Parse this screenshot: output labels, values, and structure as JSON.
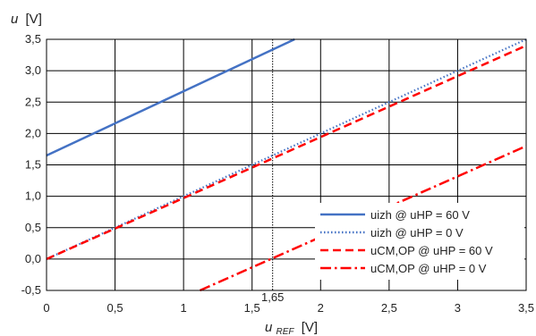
{
  "chart_data": {
    "type": "line",
    "title": "",
    "ylabel_main": "u",
    "ylabel_unit": "[V]",
    "xlabel_main": "u",
    "xlabel_sub": "REF",
    "xlabel_unit": "[V]",
    "xlim": [
      0,
      3.5
    ],
    "ylim": [
      -0.5,
      3.5
    ],
    "x_ticks": [
      "0",
      "0,5",
      "1",
      "1,5",
      "2",
      "2,5",
      "3",
      "3,5"
    ],
    "y_ticks": [
      "-0,5",
      "0,0",
      "0,5",
      "1,0",
      "1,5",
      "2,0",
      "2,5",
      "3,0",
      "3,5"
    ],
    "grid": true,
    "legend_position": "bottom-right",
    "marker_line": {
      "x": 1.65,
      "label": "1,65"
    },
    "series": [
      {
        "name": "uizh @ uHP = 60 V",
        "color": "#4472C4",
        "style": "solid",
        "x": [
          0,
          1.81
        ],
        "y": [
          1.65,
          3.5
        ]
      },
      {
        "name": "uizh @ uHP = 0 V",
        "color": "#4472C4",
        "style": "dotted",
        "x": [
          0,
          3.5
        ],
        "y": [
          0,
          3.5
        ]
      },
      {
        "name": "uCM,OP @ uHP = 60 V",
        "color": "#FF0000",
        "style": "dashed",
        "x": [
          0,
          3.5
        ],
        "y": [
          0,
          3.4
        ]
      },
      {
        "name": "uCM,OP @ uHP = 0 V",
        "color": "#FF0000",
        "style": "dashdot",
        "x": [
          1.12,
          3.5
        ],
        "y": [
          -0.5,
          1.8
        ]
      }
    ]
  }
}
